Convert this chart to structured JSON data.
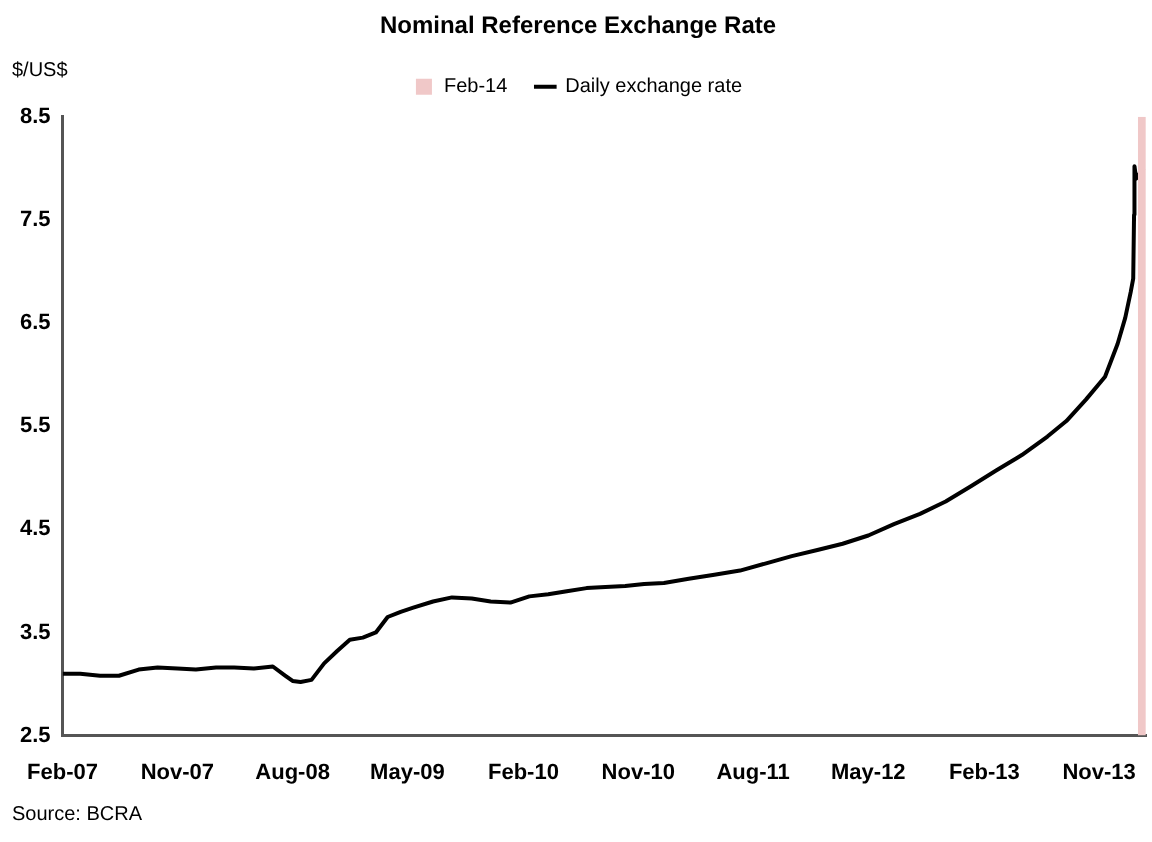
{
  "chart_data": {
    "type": "line",
    "title": "Nominal Reference Exchange Rate",
    "ylabel": "$/US$",
    "annotations": [
      "Source: BCRA"
    ],
    "xlim": [
      "2007-02-01",
      "2014-02-20"
    ],
    "xticks": [
      {
        "value": "2007-02-01",
        "label": "Feb-07"
      },
      {
        "value": "2007-11-01",
        "label": "Nov-07"
      },
      {
        "value": "2008-08-01",
        "label": "Aug-08"
      },
      {
        "value": "2009-05-01",
        "label": "May-09"
      },
      {
        "value": "2010-02-01",
        "label": "Feb-10"
      },
      {
        "value": "2010-11-01",
        "label": "Nov-10"
      },
      {
        "value": "2011-08-01",
        "label": "Aug-11"
      },
      {
        "value": "2012-05-01",
        "label": "May-12"
      },
      {
        "value": "2013-02-01",
        "label": "Feb-13"
      },
      {
        "value": "2013-11-01",
        "label": "Nov-13"
      }
    ],
    "ylim": [
      2.5,
      8.5
    ],
    "yticks": [
      2.5,
      3.5,
      4.5,
      5.5,
      6.5,
      7.5,
      8.5
    ],
    "grid": false,
    "legend": "top",
    "marker": "none",
    "line_style": "solid",
    "bands": [
      {
        "axis": "x",
        "from": "2014-02-01",
        "to": "2014-02-20",
        "label": "Feb-14",
        "color": "#f0c8c8"
      }
    ],
    "series": [
      {
        "name": "Daily exchange rate",
        "color": "#000000",
        "x": [
          "2007-02-01",
          "2007-03-15",
          "2007-05-01",
          "2007-06-15",
          "2007-08-01",
          "2007-09-15",
          "2007-11-01",
          "2007-12-15",
          "2008-02-01",
          "2008-03-15",
          "2008-05-01",
          "2008-06-15",
          "2008-07-15",
          "2008-08-01",
          "2008-08-20",
          "2008-09-15",
          "2008-10-15",
          "2008-11-15",
          "2008-12-15",
          "2009-01-15",
          "2009-02-15",
          "2009-03-15",
          "2009-04-15",
          "2009-05-15",
          "2009-07-01",
          "2009-08-15",
          "2009-10-01",
          "2009-11-15",
          "2010-01-01",
          "2010-02-15",
          "2010-04-01",
          "2010-05-15",
          "2010-07-01",
          "2010-08-15",
          "2010-10-01",
          "2010-11-15",
          "2011-01-01",
          "2011-03-01",
          "2011-05-01",
          "2011-07-01",
          "2011-09-01",
          "2011-11-01",
          "2012-01-01",
          "2012-03-01",
          "2012-05-01",
          "2012-07-01",
          "2012-09-01",
          "2012-11-01",
          "2013-01-01",
          "2013-03-01",
          "2013-05-01",
          "2013-07-01",
          "2013-08-15",
          "2013-10-01",
          "2013-11-15",
          "2013-12-15",
          "2014-01-02",
          "2014-01-15",
          "2014-01-21",
          "2014-01-23",
          "2014-01-24",
          "2014-01-28",
          "2014-02-05",
          "2014-02-15"
        ],
        "values": [
          3.1,
          3.1,
          3.08,
          3.08,
          3.14,
          3.16,
          3.15,
          3.14,
          3.16,
          3.16,
          3.15,
          3.17,
          3.08,
          3.03,
          3.02,
          3.04,
          3.2,
          3.32,
          3.43,
          3.45,
          3.5,
          3.65,
          3.7,
          3.74,
          3.8,
          3.84,
          3.83,
          3.8,
          3.79,
          3.85,
          3.87,
          3.9,
          3.93,
          3.94,
          3.95,
          3.97,
          3.98,
          4.02,
          4.06,
          4.1,
          4.17,
          4.24,
          4.3,
          4.36,
          4.44,
          4.55,
          4.65,
          4.77,
          4.92,
          5.07,
          5.22,
          5.4,
          5.55,
          5.76,
          5.98,
          6.3,
          6.55,
          6.8,
          6.93,
          7.55,
          8.02,
          7.9,
          7.95,
          8.0
        ]
      }
    ]
  }
}
